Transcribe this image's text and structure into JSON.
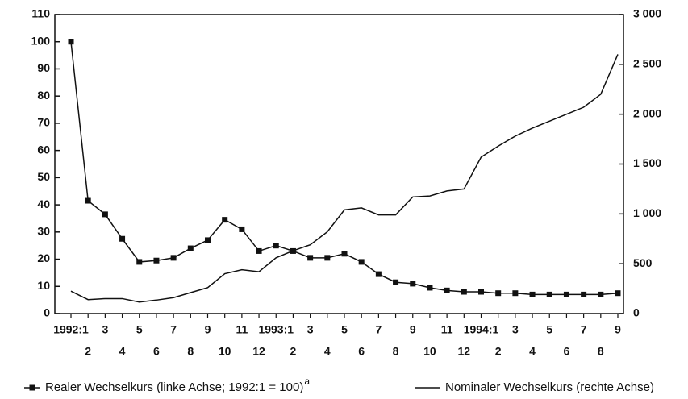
{
  "chart_data": {
    "type": "line",
    "categories": [
      "1992:1",
      "2",
      "3",
      "4",
      "5",
      "6",
      "7",
      "8",
      "9",
      "10",
      "11",
      "12",
      "1993:1",
      "2",
      "3",
      "4",
      "5",
      "6",
      "7",
      "8",
      "9",
      "10",
      "11",
      "12",
      "1994:1",
      "2",
      "3",
      "4",
      "5",
      "6",
      "7",
      "8",
      "9"
    ],
    "series": [
      {
        "name": "Realer Wechselkurs (linke Achse; 1992:1 = 100)",
        "color": "#111111",
        "marker": "square",
        "values": [
          100,
          41.5,
          36.5,
          27.5,
          19,
          19.5,
          20.5,
          24,
          27,
          34.5,
          31,
          23,
          25,
          23,
          20.5,
          20.5,
          22,
          19,
          14.5,
          11.5,
          11,
          9.5,
          8.5,
          8,
          8,
          7.5,
          7.5,
          7,
          7,
          7,
          7,
          7,
          7.5
        ]
      },
      {
        "name": "Nominaler Wechselkurs (rechte Achse)",
        "color": "#111111",
        "axis": "y2",
        "values": [
          225,
          140,
          150,
          150,
          115,
          135,
          160,
          210,
          260,
          400,
          440,
          420,
          560,
          630,
          690,
          820,
          1040,
          1060,
          990,
          990,
          1170,
          1180,
          1230,
          1250,
          1570,
          1680,
          1780,
          1860,
          1930,
          2000,
          2070,
          2200,
          2600
        ]
      }
    ],
    "legend_footnote": "a",
    "ylim": [
      0,
      110
    ],
    "yticks": [
      0,
      10,
      20,
      30,
      40,
      50,
      60,
      70,
      80,
      90,
      100,
      110
    ],
    "y2lim": [
      0,
      3000
    ],
    "y2ticks": [
      {
        "value": 0,
        "label": "0"
      },
      {
        "value": 500,
        "label": "500"
      },
      {
        "value": 1000,
        "label": "1 000"
      },
      {
        "value": 1500,
        "label": "1 500"
      },
      {
        "value": 2000,
        "label": "2 000"
      },
      {
        "value": 2500,
        "label": "2 500"
      },
      {
        "value": 3000,
        "label": "3 000"
      }
    ],
    "legend": "bottom"
  }
}
